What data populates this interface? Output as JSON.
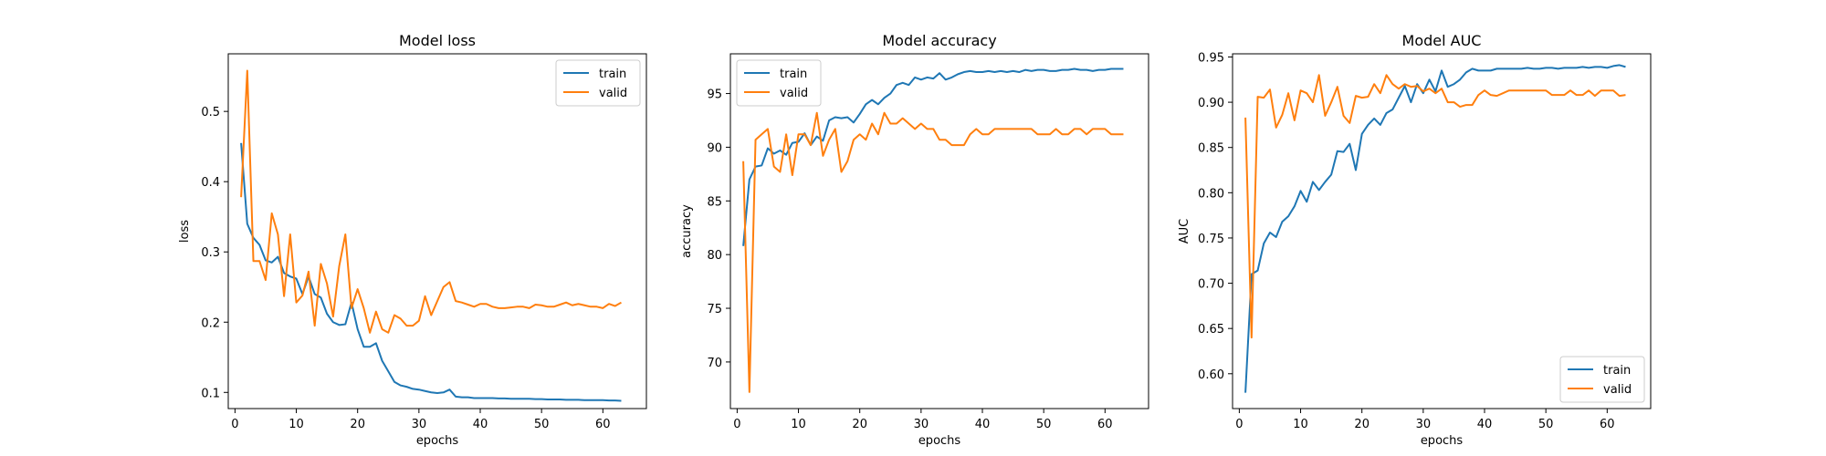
{
  "chart_data": [
    {
      "type": "line",
      "title": "Model loss",
      "xlabel": "epochs",
      "ylabel": "loss",
      "xlim": [
        -1.1,
        67.1
      ],
      "ylim": [
        0.077,
        0.582
      ],
      "xticks": [
        0,
        10,
        20,
        30,
        40,
        50,
        60
      ],
      "yticks": [
        0.1,
        0.2,
        0.3,
        0.4,
        0.5
      ],
      "ytick_labels": [
        "0.1",
        "0.2",
        "0.3",
        "0.4",
        "0.5"
      ],
      "legend_position": "top-right",
      "series": [
        {
          "name": "train",
          "color": "#1f77b4",
          "x": [
            1,
            2,
            3,
            4,
            5,
            6,
            7,
            8,
            9,
            10,
            11,
            12,
            13,
            14,
            15,
            16,
            17,
            18,
            19,
            20,
            21,
            22,
            23,
            24,
            25,
            26,
            27,
            28,
            29,
            30,
            31,
            32,
            33,
            34,
            35,
            36,
            37,
            38,
            39,
            40,
            41,
            42,
            43,
            44,
            45,
            46,
            47,
            48,
            49,
            50,
            51,
            52,
            53,
            54,
            55,
            56,
            57,
            58,
            59,
            60,
            61,
            62,
            63
          ],
          "y": [
            0.455,
            0.34,
            0.32,
            0.31,
            0.288,
            0.285,
            0.293,
            0.27,
            0.265,
            0.262,
            0.24,
            0.265,
            0.24,
            0.235,
            0.212,
            0.2,
            0.196,
            0.197,
            0.228,
            0.19,
            0.165,
            0.165,
            0.17,
            0.145,
            0.13,
            0.115,
            0.11,
            0.108,
            0.105,
            0.104,
            0.102,
            0.1,
            0.099,
            0.1,
            0.104,
            0.094,
            0.093,
            0.093,
            0.092,
            0.092,
            0.092,
            0.092,
            0.0915,
            0.0915,
            0.091,
            0.091,
            0.091,
            0.091,
            0.0905,
            0.0905,
            0.09,
            0.09,
            0.09,
            0.0895,
            0.0895,
            0.0895,
            0.089,
            0.089,
            0.089,
            0.089,
            0.0885,
            0.0885,
            0.088
          ]
        },
        {
          "name": "valid",
          "color": "#ff7f0e",
          "x": [
            1,
            2,
            3,
            4,
            5,
            6,
            7,
            8,
            9,
            10,
            11,
            12,
            13,
            14,
            15,
            16,
            17,
            18,
            19,
            20,
            21,
            22,
            23,
            24,
            25,
            26,
            27,
            28,
            29,
            30,
            31,
            32,
            33,
            34,
            35,
            36,
            37,
            38,
            39,
            40,
            41,
            42,
            43,
            44,
            45,
            46,
            47,
            48,
            49,
            50,
            51,
            52,
            53,
            54,
            55,
            56,
            57,
            58,
            59,
            60,
            61,
            62,
            63
          ],
          "y": [
            0.378,
            0.558,
            0.287,
            0.287,
            0.26,
            0.355,
            0.325,
            0.237,
            0.325,
            0.228,
            0.238,
            0.272,
            0.195,
            0.283,
            0.255,
            0.208,
            0.28,
            0.325,
            0.22,
            0.247,
            0.22,
            0.185,
            0.215,
            0.19,
            0.185,
            0.21,
            0.205,
            0.195,
            0.195,
            0.202,
            0.237,
            0.21,
            0.23,
            0.25,
            0.257,
            0.23,
            0.228,
            0.225,
            0.222,
            0.226,
            0.226,
            0.222,
            0.22,
            0.22,
            0.221,
            0.222,
            0.222,
            0.22,
            0.225,
            0.224,
            0.222,
            0.222,
            0.225,
            0.228,
            0.224,
            0.226,
            0.224,
            0.222,
            0.222,
            0.22,
            0.226,
            0.223,
            0.228
          ]
        }
      ]
    },
    {
      "type": "line",
      "title": "Model accuracy",
      "xlabel": "epochs",
      "ylabel": "accuracy",
      "xlim": [
        -1.1,
        67.1
      ],
      "ylim": [
        65.66,
        98.7
      ],
      "xticks": [
        0,
        10,
        20,
        30,
        40,
        50,
        60
      ],
      "yticks": [
        70,
        75,
        80,
        85,
        90,
        95
      ],
      "ytick_labels": [
        "70",
        "75",
        "80",
        "85",
        "90",
        "95"
      ],
      "legend_position": "top-left",
      "series": [
        {
          "name": "train",
          "color": "#1f77b4",
          "x": [
            1,
            2,
            3,
            4,
            5,
            6,
            7,
            8,
            9,
            10,
            11,
            12,
            13,
            14,
            15,
            16,
            17,
            18,
            19,
            20,
            21,
            22,
            23,
            24,
            25,
            26,
            27,
            28,
            29,
            30,
            31,
            32,
            33,
            34,
            35,
            36,
            37,
            38,
            39,
            40,
            41,
            42,
            43,
            44,
            45,
            46,
            47,
            48,
            49,
            50,
            51,
            52,
            53,
            54,
            55,
            56,
            57,
            58,
            59,
            60,
            61,
            62,
            63
          ],
          "y": [
            80.8,
            87.0,
            88.2,
            88.3,
            89.9,
            89.4,
            89.7,
            89.3,
            90.4,
            90.5,
            91.3,
            90.2,
            91.0,
            90.6,
            92.5,
            92.8,
            92.7,
            92.8,
            92.3,
            93.1,
            94.0,
            94.4,
            94.0,
            94.6,
            95.0,
            95.8,
            96.0,
            95.8,
            96.5,
            96.3,
            96.5,
            96.4,
            96.9,
            96.3,
            96.5,
            96.8,
            97.0,
            97.1,
            97.0,
            97.0,
            97.1,
            97.0,
            97.1,
            97.0,
            97.1,
            97.0,
            97.2,
            97.1,
            97.2,
            97.2,
            97.1,
            97.1,
            97.2,
            97.2,
            97.3,
            97.2,
            97.2,
            97.1,
            97.2,
            97.2,
            97.3,
            97.3,
            97.3
          ]
        },
        {
          "name": "valid",
          "color": "#ff7f0e",
          "x": [
            1,
            2,
            3,
            4,
            5,
            6,
            7,
            8,
            9,
            10,
            11,
            12,
            13,
            14,
            15,
            16,
            17,
            18,
            19,
            20,
            21,
            22,
            23,
            24,
            25,
            26,
            27,
            28,
            29,
            30,
            31,
            32,
            33,
            34,
            35,
            36,
            37,
            38,
            39,
            40,
            41,
            42,
            43,
            44,
            45,
            46,
            47,
            48,
            49,
            50,
            51,
            52,
            53,
            54,
            55,
            56,
            57,
            58,
            59,
            60,
            61,
            62,
            63
          ],
          "y": [
            88.7,
            67.2,
            90.7,
            91.2,
            91.7,
            88.2,
            87.7,
            91.2,
            87.4,
            91.2,
            91.2,
            90.2,
            93.2,
            89.2,
            90.7,
            91.7,
            87.7,
            88.7,
            90.7,
            91.2,
            90.7,
            92.2,
            91.2,
            93.2,
            92.2,
            92.2,
            92.7,
            92.2,
            91.7,
            92.2,
            91.7,
            91.7,
            90.7,
            90.7,
            90.2,
            90.2,
            90.2,
            91.2,
            91.7,
            91.2,
            91.2,
            91.7,
            91.7,
            91.7,
            91.7,
            91.7,
            91.7,
            91.7,
            91.2,
            91.2,
            91.2,
            91.7,
            91.2,
            91.2,
            91.7,
            91.7,
            91.2,
            91.7,
            91.7,
            91.7,
            91.2,
            91.2,
            91.2
          ]
        }
      ]
    },
    {
      "type": "line",
      "title": "Model AUC",
      "xlabel": "epochs",
      "ylabel": "AUC",
      "xlim": [
        -1.1,
        67.1
      ],
      "ylim": [
        0.5615,
        0.9535
      ],
      "xticks": [
        0,
        10,
        20,
        30,
        40,
        50,
        60
      ],
      "yticks": [
        0.6,
        0.65,
        0.7,
        0.75,
        0.8,
        0.85,
        0.9,
        0.95
      ],
      "ytick_labels": [
        "0.60",
        "0.65",
        "0.70",
        "0.75",
        "0.80",
        "0.85",
        "0.90",
        "0.95"
      ],
      "legend_position": "bottom-right",
      "series": [
        {
          "name": "train",
          "color": "#1f77b4",
          "x": [
            1,
            2,
            3,
            4,
            5,
            6,
            7,
            8,
            9,
            10,
            11,
            12,
            13,
            14,
            15,
            16,
            17,
            18,
            19,
            20,
            21,
            22,
            23,
            24,
            25,
            26,
            27,
            28,
            29,
            30,
            31,
            32,
            33,
            34,
            35,
            36,
            37,
            38,
            39,
            40,
            41,
            42,
            43,
            44,
            45,
            46,
            47,
            48,
            49,
            50,
            51,
            52,
            53,
            54,
            55,
            56,
            57,
            58,
            59,
            60,
            61,
            62,
            63
          ],
          "y": [
            0.579,
            0.71,
            0.714,
            0.744,
            0.756,
            0.751,
            0.768,
            0.774,
            0.785,
            0.802,
            0.79,
            0.812,
            0.803,
            0.812,
            0.82,
            0.846,
            0.845,
            0.854,
            0.825,
            0.865,
            0.875,
            0.882,
            0.875,
            0.888,
            0.892,
            0.905,
            0.918,
            0.9,
            0.92,
            0.91,
            0.925,
            0.912,
            0.935,
            0.917,
            0.92,
            0.925,
            0.933,
            0.937,
            0.935,
            0.935,
            0.935,
            0.937,
            0.937,
            0.937,
            0.937,
            0.937,
            0.938,
            0.937,
            0.937,
            0.938,
            0.938,
            0.937,
            0.938,
            0.938,
            0.938,
            0.939,
            0.938,
            0.939,
            0.939,
            0.938,
            0.94,
            0.941,
            0.939
          ]
        },
        {
          "name": "valid",
          "color": "#ff7f0e",
          "x": [
            1,
            2,
            3,
            4,
            5,
            6,
            7,
            8,
            9,
            10,
            11,
            12,
            13,
            14,
            15,
            16,
            17,
            18,
            19,
            20,
            21,
            22,
            23,
            24,
            25,
            26,
            27,
            28,
            29,
            30,
            31,
            32,
            33,
            34,
            35,
            36,
            37,
            38,
            39,
            40,
            41,
            42,
            43,
            44,
            45,
            46,
            47,
            48,
            49,
            50,
            51,
            52,
            53,
            54,
            55,
            56,
            57,
            58,
            59,
            60,
            61,
            62,
            63
          ],
          "y": [
            0.883,
            0.64,
            0.906,
            0.905,
            0.914,
            0.872,
            0.886,
            0.91,
            0.88,
            0.913,
            0.91,
            0.9,
            0.93,
            0.885,
            0.9,
            0.917,
            0.885,
            0.877,
            0.907,
            0.905,
            0.906,
            0.92,
            0.91,
            0.93,
            0.92,
            0.915,
            0.92,
            0.917,
            0.918,
            0.912,
            0.915,
            0.91,
            0.915,
            0.9,
            0.9,
            0.895,
            0.897,
            0.897,
            0.908,
            0.913,
            0.908,
            0.907,
            0.91,
            0.913,
            0.913,
            0.913,
            0.913,
            0.913,
            0.913,
            0.913,
            0.908,
            0.908,
            0.908,
            0.913,
            0.908,
            0.908,
            0.913,
            0.907,
            0.913,
            0.913,
            0.913,
            0.907,
            0.908
          ]
        }
      ]
    }
  ]
}
